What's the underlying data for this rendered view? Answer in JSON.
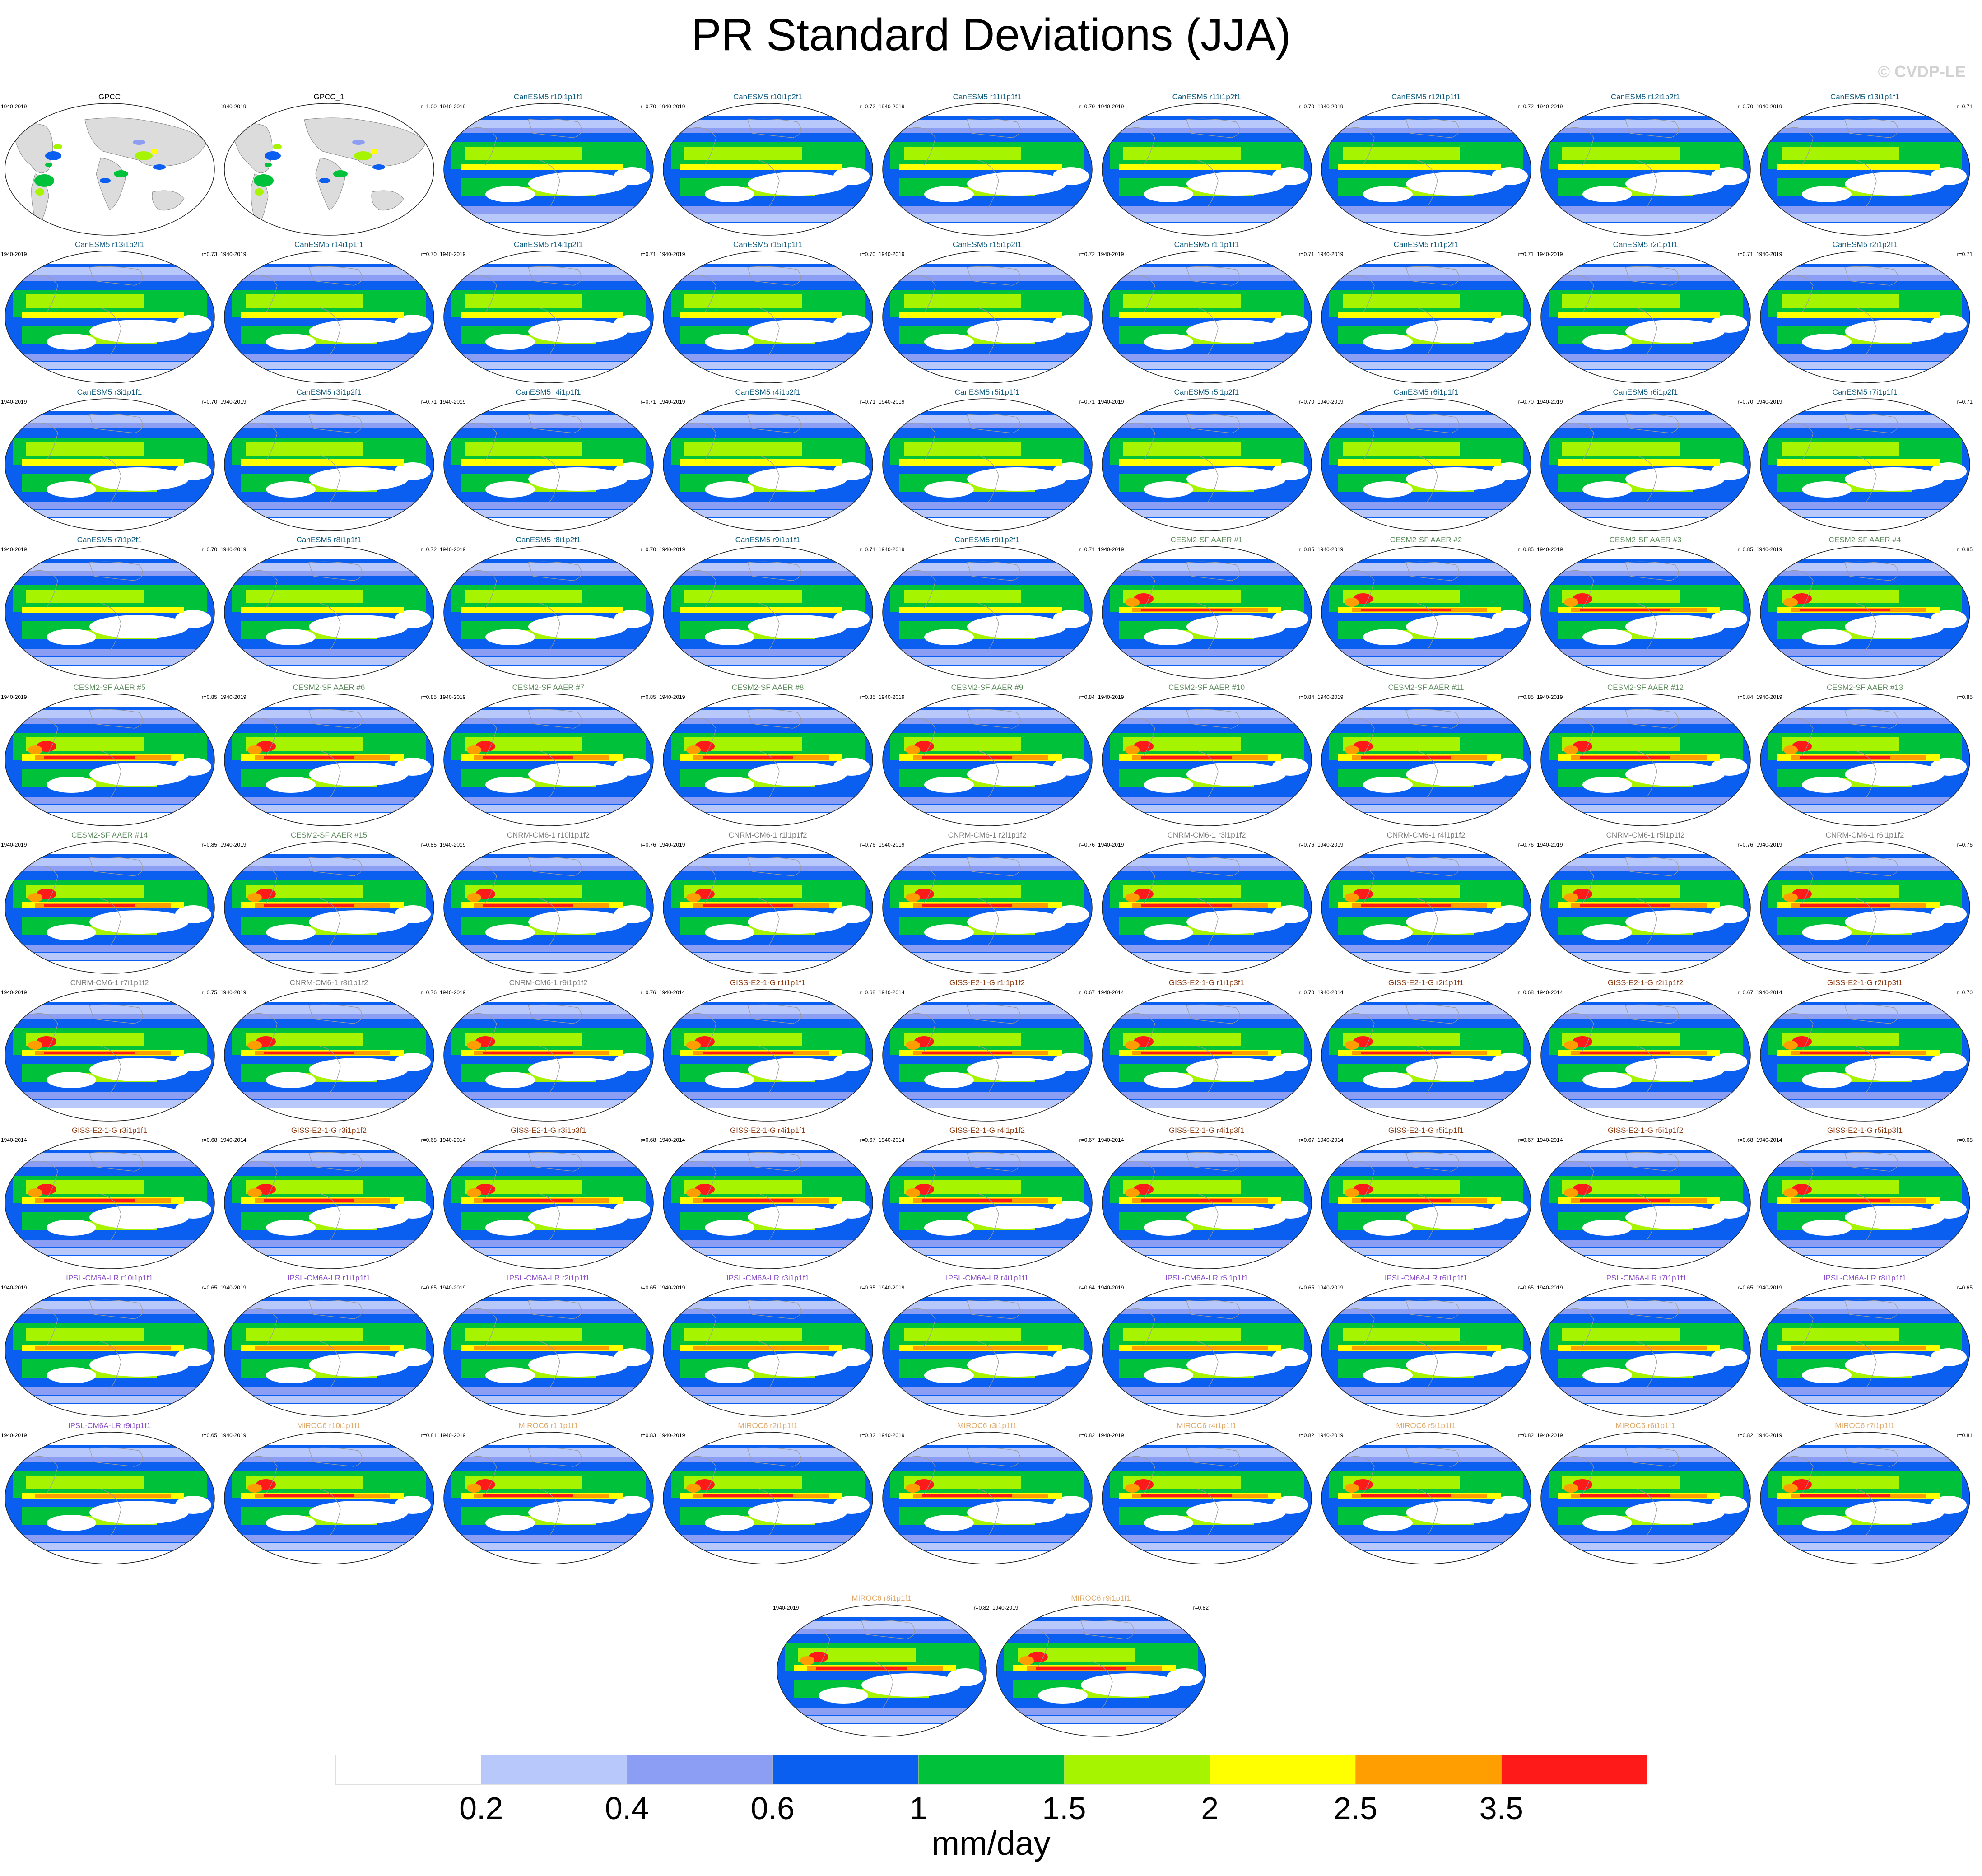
{
  "title": "PR Standard Deviations (JJA)",
  "copyright": "© CVDP-LE",
  "colors": {
    "levels": [
      "#ffffff",
      "#b8c8fa",
      "#8c9ef4",
      "#0a5ef0",
      "#00c23a",
      "#a6f400",
      "#ffff00",
      "#ff9e00",
      "#ff1a1a"
    ],
    "land_observed": "#dcdcdc",
    "groups": {
      "obs": "#000000",
      "CanESM5": "#0e5a7f",
      "CESM2-SF AAER": "#5e8b5e",
      "CNRM-CM6-1": "#7e7e7e",
      "GISS-E2-1-G": "#8b3a12",
      "IPSL-CM6A-LR": "#8a4fc8",
      "MIROC6": "#e0a96a"
    }
  },
  "chart_data": {
    "type": "heatmap",
    "title": "PR Standard Deviations (JJA)",
    "colorbar": {
      "tick_labels": [
        "0.2",
        "0.4",
        "0.6",
        "1",
        "1.5",
        "2",
        "2.5",
        "3.5"
      ],
      "units": "mm/day"
    },
    "panels": [
      {
        "title": "GPCC",
        "group": "obs",
        "period": "1940-2019",
        "r": ""
      },
      {
        "title": "GPCC_1",
        "group": "obs",
        "period": "1940-2019",
        "r": "r=1.00"
      },
      {
        "title": "CanESM5 r10i1p1f1",
        "group": "CanESM5",
        "period": "1940-2019",
        "r": "r=0.70"
      },
      {
        "title": "CanESM5 r10i1p2f1",
        "group": "CanESM5",
        "period": "1940-2019",
        "r": "r=0.72"
      },
      {
        "title": "CanESM5 r11i1p1f1",
        "group": "CanESM5",
        "period": "1940-2019",
        "r": "r=0.70"
      },
      {
        "title": "CanESM5 r11i1p2f1",
        "group": "CanESM5",
        "period": "1940-2019",
        "r": "r=0.70"
      },
      {
        "title": "CanESM5 r12i1p1f1",
        "group": "CanESM5",
        "period": "1940-2019",
        "r": "r=0.72"
      },
      {
        "title": "CanESM5 r12i1p2f1",
        "group": "CanESM5",
        "period": "1940-2019",
        "r": "r=0.70"
      },
      {
        "title": "CanESM5 r13i1p1f1",
        "group": "CanESM5",
        "period": "1940-2019",
        "r": "r=0.71"
      },
      {
        "title": "CanESM5 r13i1p2f1",
        "group": "CanESM5",
        "period": "1940-2019",
        "r": "r=0.73"
      },
      {
        "title": "CanESM5 r14i1p1f1",
        "group": "CanESM5",
        "period": "1940-2019",
        "r": "r=0.70"
      },
      {
        "title": "CanESM5 r14i1p2f1",
        "group": "CanESM5",
        "period": "1940-2019",
        "r": "r=0.71"
      },
      {
        "title": "CanESM5 r15i1p1f1",
        "group": "CanESM5",
        "period": "1940-2019",
        "r": "r=0.70"
      },
      {
        "title": "CanESM5 r15i1p2f1",
        "group": "CanESM5",
        "period": "1940-2019",
        "r": "r=0.72"
      },
      {
        "title": "CanESM5 r1i1p1f1",
        "group": "CanESM5",
        "period": "1940-2019",
        "r": "r=0.71"
      },
      {
        "title": "CanESM5 r1i1p2f1",
        "group": "CanESM5",
        "period": "1940-2019",
        "r": "r=0.71"
      },
      {
        "title": "CanESM5 r2i1p1f1",
        "group": "CanESM5",
        "period": "1940-2019",
        "r": "r=0.71"
      },
      {
        "title": "CanESM5 r2i1p2f1",
        "group": "CanESM5",
        "period": "1940-2019",
        "r": "r=0.71"
      },
      {
        "title": "CanESM5 r3i1p1f1",
        "group": "CanESM5",
        "period": "1940-2019",
        "r": "r=0.70"
      },
      {
        "title": "CanESM5 r3i1p2f1",
        "group": "CanESM5",
        "period": "1940-2019",
        "r": "r=0.71"
      },
      {
        "title": "CanESM5 r4i1p1f1",
        "group": "CanESM5",
        "period": "1940-2019",
        "r": "r=0.71"
      },
      {
        "title": "CanESM5 r4i1p2f1",
        "group": "CanESM5",
        "period": "1940-2019",
        "r": "r=0.71"
      },
      {
        "title": "CanESM5 r5i1p1f1",
        "group": "CanESM5",
        "period": "1940-2019",
        "r": "r=0.71"
      },
      {
        "title": "CanESM5 r5i1p2f1",
        "group": "CanESM5",
        "period": "1940-2019",
        "r": "r=0.70"
      },
      {
        "title": "CanESM5 r6i1p1f1",
        "group": "CanESM5",
        "period": "1940-2019",
        "r": "r=0.70"
      },
      {
        "title": "CanESM5 r6i1p2f1",
        "group": "CanESM5",
        "period": "1940-2019",
        "r": "r=0.70"
      },
      {
        "title": "CanESM5 r7i1p1f1",
        "group": "CanESM5",
        "period": "1940-2019",
        "r": "r=0.71"
      },
      {
        "title": "CanESM5 r7i1p2f1",
        "group": "CanESM5",
        "period": "1940-2019",
        "r": "r=0.70"
      },
      {
        "title": "CanESM5 r8i1p1f1",
        "group": "CanESM5",
        "period": "1940-2019",
        "r": "r=0.72"
      },
      {
        "title": "CanESM5 r8i1p2f1",
        "group": "CanESM5",
        "period": "1940-2019",
        "r": "r=0.70"
      },
      {
        "title": "CanESM5 r9i1p1f1",
        "group": "CanESM5",
        "period": "1940-2019",
        "r": "r=0.71"
      },
      {
        "title": "CanESM5 r9i1p2f1",
        "group": "CanESM5",
        "period": "1940-2019",
        "r": "r=0.71"
      },
      {
        "title": "CESM2-SF AAER #1",
        "group": "CESM2-SF AAER",
        "period": "1940-2019",
        "r": "r=0.85"
      },
      {
        "title": "CESM2-SF AAER #2",
        "group": "CESM2-SF AAER",
        "period": "1940-2019",
        "r": "r=0.85"
      },
      {
        "title": "CESM2-SF AAER #3",
        "group": "CESM2-SF AAER",
        "period": "1940-2019",
        "r": "r=0.85"
      },
      {
        "title": "CESM2-SF AAER #4",
        "group": "CESM2-SF AAER",
        "period": "1940-2019",
        "r": "r=0.85"
      },
      {
        "title": "CESM2-SF AAER #5",
        "group": "CESM2-SF AAER",
        "period": "1940-2019",
        "r": "r=0.85"
      },
      {
        "title": "CESM2-SF AAER #6",
        "group": "CESM2-SF AAER",
        "period": "1940-2019",
        "r": "r=0.85"
      },
      {
        "title": "CESM2-SF AAER #7",
        "group": "CESM2-SF AAER",
        "period": "1940-2019",
        "r": "r=0.85"
      },
      {
        "title": "CESM2-SF AAER #8",
        "group": "CESM2-SF AAER",
        "period": "1940-2019",
        "r": "r=0.85"
      },
      {
        "title": "CESM2-SF AAER #9",
        "group": "CESM2-SF AAER",
        "period": "1940-2019",
        "r": "r=0.84"
      },
      {
        "title": "CESM2-SF AAER #10",
        "group": "CESM2-SF AAER",
        "period": "1940-2019",
        "r": "r=0.84"
      },
      {
        "title": "CESM2-SF AAER #11",
        "group": "CESM2-SF AAER",
        "period": "1940-2019",
        "r": "r=0.85"
      },
      {
        "title": "CESM2-SF AAER #12",
        "group": "CESM2-SF AAER",
        "period": "1940-2019",
        "r": "r=0.84"
      },
      {
        "title": "CESM2-SF AAER #13",
        "group": "CESM2-SF AAER",
        "period": "1940-2019",
        "r": "r=0.85"
      },
      {
        "title": "CESM2-SF AAER #14",
        "group": "CESM2-SF AAER",
        "period": "1940-2019",
        "r": "r=0.85"
      },
      {
        "title": "CESM2-SF AAER #15",
        "group": "CESM2-SF AAER",
        "period": "1940-2019",
        "r": "r=0.85"
      },
      {
        "title": "CNRM-CM6-1 r10i1p1f2",
        "group": "CNRM-CM6-1",
        "period": "1940-2019",
        "r": "r=0.76"
      },
      {
        "title": "CNRM-CM6-1 r1i1p1f2",
        "group": "CNRM-CM6-1",
        "period": "1940-2019",
        "r": "r=0.76"
      },
      {
        "title": "CNRM-CM6-1 r2i1p1f2",
        "group": "CNRM-CM6-1",
        "period": "1940-2019",
        "r": "r=0.76"
      },
      {
        "title": "CNRM-CM6-1 r3i1p1f2",
        "group": "CNRM-CM6-1",
        "period": "1940-2019",
        "r": "r=0.76"
      },
      {
        "title": "CNRM-CM6-1 r4i1p1f2",
        "group": "CNRM-CM6-1",
        "period": "1940-2019",
        "r": "r=0.76"
      },
      {
        "title": "CNRM-CM6-1 r5i1p1f2",
        "group": "CNRM-CM6-1",
        "period": "1940-2019",
        "r": "r=0.76"
      },
      {
        "title": "CNRM-CM6-1 r6i1p1f2",
        "group": "CNRM-CM6-1",
        "period": "1940-2019",
        "r": "r=0.76"
      },
      {
        "title": "CNRM-CM6-1 r7i1p1f2",
        "group": "CNRM-CM6-1",
        "period": "1940-2019",
        "r": "r=0.75"
      },
      {
        "title": "CNRM-CM6-1 r8i1p1f2",
        "group": "CNRM-CM6-1",
        "period": "1940-2019",
        "r": "r=0.76"
      },
      {
        "title": "CNRM-CM6-1 r9i1p1f2",
        "group": "CNRM-CM6-1",
        "period": "1940-2019",
        "r": "r=0.76"
      },
      {
        "title": "GISS-E2-1-G r1i1p1f1",
        "group": "GISS-E2-1-G",
        "period": "1940-2014",
        "r": "r=0.68"
      },
      {
        "title": "GISS-E2-1-G r1i1p1f2",
        "group": "GISS-E2-1-G",
        "period": "1940-2014",
        "r": "r=0.67"
      },
      {
        "title": "GISS-E2-1-G r1i1p3f1",
        "group": "GISS-E2-1-G",
        "period": "1940-2014",
        "r": "r=0.70"
      },
      {
        "title": "GISS-E2-1-G r2i1p1f1",
        "group": "GISS-E2-1-G",
        "period": "1940-2014",
        "r": "r=0.68"
      },
      {
        "title": "GISS-E2-1-G r2i1p1f2",
        "group": "GISS-E2-1-G",
        "period": "1940-2014",
        "r": "r=0.67"
      },
      {
        "title": "GISS-E2-1-G r2i1p3f1",
        "group": "GISS-E2-1-G",
        "period": "1940-2014",
        "r": "r=0.70"
      },
      {
        "title": "GISS-E2-1-G r3i1p1f1",
        "group": "GISS-E2-1-G",
        "period": "1940-2014",
        "r": "r=0.68"
      },
      {
        "title": "GISS-E2-1-G r3i1p1f2",
        "group": "GISS-E2-1-G",
        "period": "1940-2014",
        "r": "r=0.68"
      },
      {
        "title": "GISS-E2-1-G r3i1p3f1",
        "group": "GISS-E2-1-G",
        "period": "1940-2014",
        "r": "r=0.68"
      },
      {
        "title": "GISS-E2-1-G r4i1p1f1",
        "group": "GISS-E2-1-G",
        "period": "1940-2014",
        "r": "r=0.67"
      },
      {
        "title": "GISS-E2-1-G r4i1p1f2",
        "group": "GISS-E2-1-G",
        "period": "1940-2014",
        "r": "r=0.67"
      },
      {
        "title": "GISS-E2-1-G r4i1p3f1",
        "group": "GISS-E2-1-G",
        "period": "1940-2014",
        "r": "r=0.67"
      },
      {
        "title": "GISS-E2-1-G r5i1p1f1",
        "group": "GISS-E2-1-G",
        "period": "1940-2014",
        "r": "r=0.67"
      },
      {
        "title": "GISS-E2-1-G r5i1p1f2",
        "group": "GISS-E2-1-G",
        "period": "1940-2014",
        "r": "r=0.68"
      },
      {
        "title": "GISS-E2-1-G r5i1p3f1",
        "group": "GISS-E2-1-G",
        "period": "1940-2014",
        "r": "r=0.68"
      },
      {
        "title": "IPSL-CM6A-LR r10i1p1f1",
        "group": "IPSL-CM6A-LR",
        "period": "1940-2019",
        "r": "r=0.65"
      },
      {
        "title": "IPSL-CM6A-LR r1i1p1f1",
        "group": "IPSL-CM6A-LR",
        "period": "1940-2019",
        "r": "r=0.65"
      },
      {
        "title": "IPSL-CM6A-LR r2i1p1f1",
        "group": "IPSL-CM6A-LR",
        "period": "1940-2019",
        "r": "r=0.65"
      },
      {
        "title": "IPSL-CM6A-LR r3i1p1f1",
        "group": "IPSL-CM6A-LR",
        "period": "1940-2019",
        "r": "r=0.65"
      },
      {
        "title": "IPSL-CM6A-LR r4i1p1f1",
        "group": "IPSL-CM6A-LR",
        "period": "1940-2019",
        "r": "r=0.64"
      },
      {
        "title": "IPSL-CM6A-LR r5i1p1f1",
        "group": "IPSL-CM6A-LR",
        "period": "1940-2019",
        "r": "r=0.65"
      },
      {
        "title": "IPSL-CM6A-LR r6i1p1f1",
        "group": "IPSL-CM6A-LR",
        "period": "1940-2019",
        "r": "r=0.65"
      },
      {
        "title": "IPSL-CM6A-LR r7i1p1f1",
        "group": "IPSL-CM6A-LR",
        "period": "1940-2019",
        "r": "r=0.65"
      },
      {
        "title": "IPSL-CM6A-LR r8i1p1f1",
        "group": "IPSL-CM6A-LR",
        "period": "1940-2019",
        "r": "r=0.65"
      },
      {
        "title": "IPSL-CM6A-LR r9i1p1f1",
        "group": "IPSL-CM6A-LR",
        "period": "1940-2019",
        "r": "r=0.65"
      },
      {
        "title": "MIROC6 r10i1p1f1",
        "group": "MIROC6",
        "period": "1940-2019",
        "r": "r=0.81"
      },
      {
        "title": "MIROC6 r1i1p1f1",
        "group": "MIROC6",
        "period": "1940-2019",
        "r": "r=0.83"
      },
      {
        "title": "MIROC6 r2i1p1f1",
        "group": "MIROC6",
        "period": "1940-2019",
        "r": "r=0.82"
      },
      {
        "title": "MIROC6 r3i1p1f1",
        "group": "MIROC6",
        "period": "1940-2019",
        "r": "r=0.82"
      },
      {
        "title": "MIROC6 r4i1p1f1",
        "group": "MIROC6",
        "period": "1940-2019",
        "r": "r=0.82"
      },
      {
        "title": "MIROC6 r5i1p1f1",
        "group": "MIROC6",
        "period": "1940-2019",
        "r": "r=0.82"
      },
      {
        "title": "MIROC6 r6i1p1f1",
        "group": "MIROC6",
        "period": "1940-2019",
        "r": "r=0.82"
      },
      {
        "title": "MIROC6 r7i1p1f1",
        "group": "MIROC6",
        "period": "1940-2019",
        "r": "r=0.81"
      },
      {
        "title": "MIROC6 r8i1p1f1",
        "group": "MIROC6",
        "period": "1940-2019",
        "r": "r=0.82"
      },
      {
        "title": "MIROC6 r9i1p1f1",
        "group": "MIROC6",
        "period": "1940-2019",
        "r": "r=0.82"
      }
    ]
  }
}
